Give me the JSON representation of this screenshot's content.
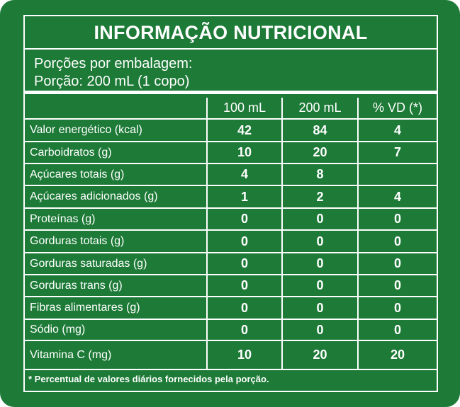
{
  "title": "INFORMAÇÃO NUTRICIONAL",
  "portions": {
    "per_package": "Porções por embalagem:",
    "portion": "Porção: 200 mL (1 copo)"
  },
  "columns": [
    "100 mL",
    "200 mL",
    "% VD (*)"
  ],
  "rows": [
    {
      "name": "Valor energético (kcal)",
      "v100": "42",
      "v200": "84",
      "vd": "4"
    },
    {
      "name": "Carboidratos (g)",
      "v100": "10",
      "v200": "20",
      "vd": "7"
    },
    {
      "name": "Açúcares totais (g)",
      "v100": "4",
      "v200": "8",
      "vd": ""
    },
    {
      "name": "Açúcares adicionados (g)",
      "v100": "1",
      "v200": "2",
      "vd": "4"
    },
    {
      "name": "Proteínas (g)",
      "v100": "0",
      "v200": "0",
      "vd": "0"
    },
    {
      "name": "Gorduras totais (g)",
      "v100": "0",
      "v200": "0",
      "vd": "0"
    },
    {
      "name": "Gorduras saturadas (g)",
      "v100": "0",
      "v200": "0",
      "vd": "0"
    },
    {
      "name": "Gorduras trans (g)",
      "v100": "0",
      "v200": "0",
      "vd": "0"
    },
    {
      "name": "Fibras alimentares (g)",
      "v100": "0",
      "v200": "0",
      "vd": "0"
    },
    {
      "name": "Sódio (mg)",
      "v100": "0",
      "v200": "0",
      "vd": "0"
    },
    {
      "name": "Vitamina C (mg)",
      "v100": "10",
      "v200": "20",
      "vd": "20"
    }
  ],
  "footnote": "* Percentual de valores diários fornecidos pela porção.",
  "colors": {
    "background": "#1d7a37",
    "lines": "#ffffff"
  }
}
